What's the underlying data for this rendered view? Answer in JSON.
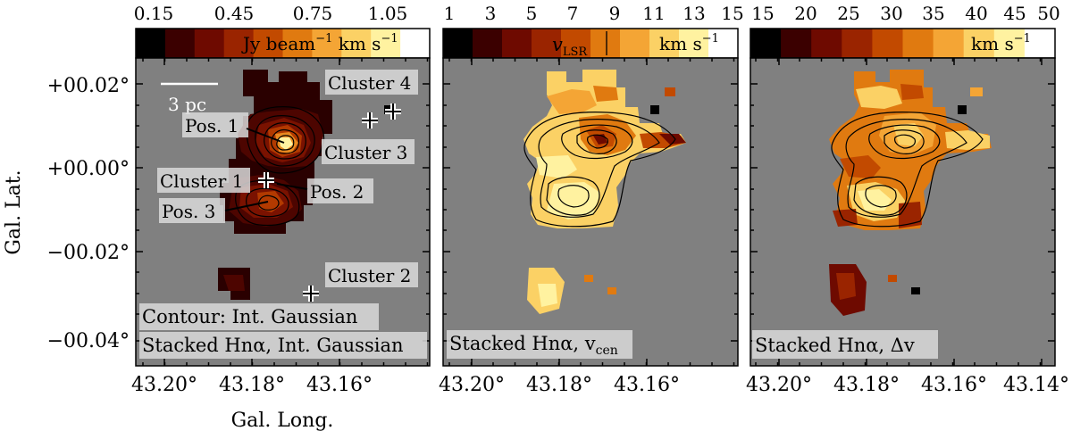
{
  "panels": [
    {
      "id": "intensity",
      "colorbar": {
        "ticks": [
          "0.15",
          "0.45",
          "0.75",
          "1.05"
        ],
        "label_prefix": "Jy beam",
        "label_exp": "−1",
        "label_mid": " km s",
        "label_exp2": "−1",
        "colors": [
          "#000000",
          "#3b0000",
          "#6e0a00",
          "#9a2400",
          "#c24a00",
          "#e07a10",
          "#f4a535",
          "#fbd165",
          "#fff2a0",
          "#ffffff"
        ]
      },
      "caption_lines": [
        "Contour: Int. Gaussian",
        "Stacked Hnα, Int. Gaussian"
      ],
      "annotations": {
        "scale_bar": "3 pc",
        "pos1": "Pos. 1",
        "pos2": "Pos. 2",
        "pos3": "Pos. 3",
        "cluster1": "Cluster 1",
        "cluster2": "Cluster 2",
        "cluster3": "Cluster 3",
        "cluster4": "Cluster 4"
      }
    },
    {
      "id": "velocity",
      "colorbar": {
        "ticks": [
          "1",
          "3",
          "5",
          "7",
          "9",
          "11",
          "13",
          "15"
        ],
        "label_main": "v",
        "label_sub": "LSR",
        "label_unit": "km s",
        "label_exp": "−1",
        "colors": [
          "#000000",
          "#3b0000",
          "#6e0a00",
          "#9a2400",
          "#c24a00",
          "#e07a10",
          "#f4a535",
          "#fbd165",
          "#fff2a0",
          "#ffffff"
        ]
      },
      "caption_main": "Stacked Hnα, v",
      "caption_sub": "cen"
    },
    {
      "id": "width",
      "colorbar": {
        "ticks": [
          "15",
          "20",
          "25",
          "30",
          "35",
          "40",
          "45",
          "50"
        ],
        "label_unit": "km s",
        "label_exp": "−1",
        "colors": [
          "#000000",
          "#3b0000",
          "#6e0a00",
          "#9a2400",
          "#c24a00",
          "#e07a10",
          "#f4a535",
          "#fbd165",
          "#fff2a0",
          "#ffffff"
        ]
      },
      "caption": "Stacked Hnα, Δv"
    }
  ],
  "axes": {
    "ylabel": "Gal. Lat.",
    "xlabel": "Gal. Long.",
    "yticks": [
      "+00.02°",
      "+00.00°",
      "−00.02°",
      "−00.04°"
    ],
    "xticks_panel1": [
      "43.20°",
      "43.18°",
      "43.16°"
    ],
    "xticks_panel2": [
      "43.20°",
      "43.18°",
      "43.16°"
    ],
    "xticks_panel3": [
      "43.20°",
      "43.18°",
      "43.16°",
      "43.14°"
    ]
  }
}
